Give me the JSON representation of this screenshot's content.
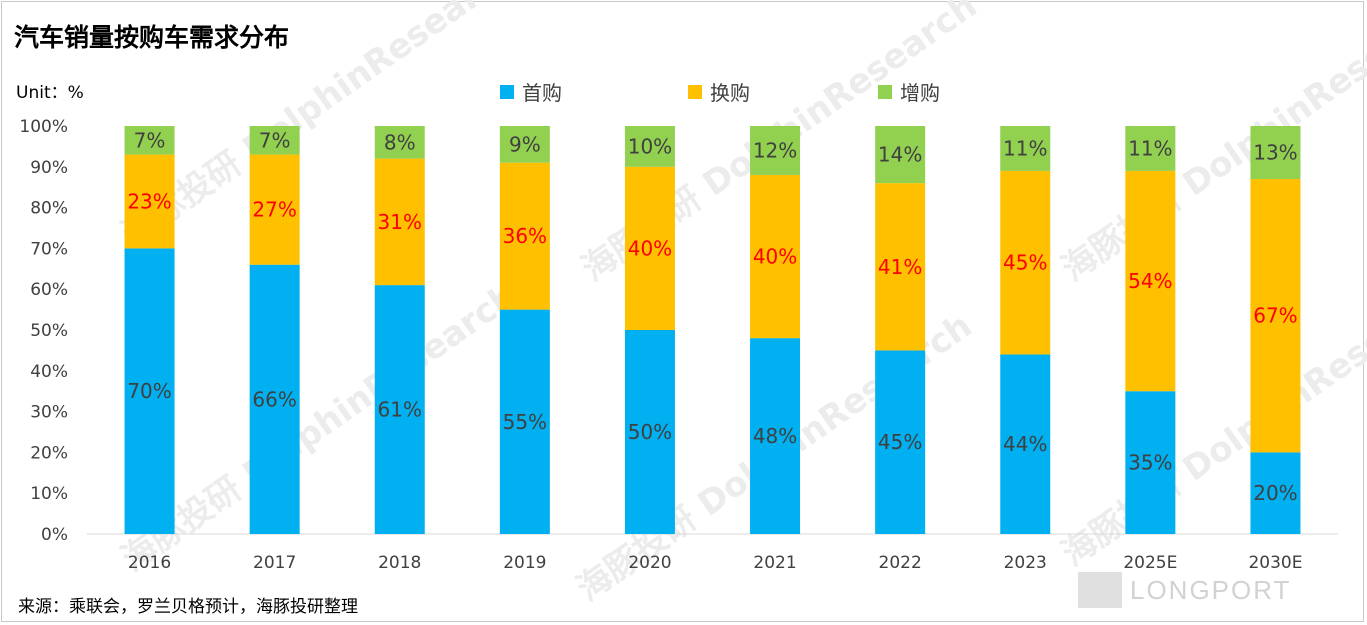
{
  "title": "汽车销量按购车需求分布",
  "unit_label": "Unit：%",
  "source": "来源：乘联会，罗兰贝格预计，海豚投研整理",
  "watermark": {
    "cn": "海豚投研",
    "en": "DolphinResearch",
    "brand": "LONGPORT"
  },
  "colors": {
    "first": "#00b0f0",
    "replace": "#ffc000",
    "add": "#92d050",
    "replace_label": "#ff0000",
    "label": "#404040"
  },
  "legend": [
    {
      "key": "first",
      "label": "首购"
    },
    {
      "key": "replace",
      "label": "换购"
    },
    {
      "key": "add",
      "label": "增购"
    }
  ],
  "chart_data": {
    "type": "bar",
    "stacked": true,
    "categories": [
      "2016",
      "2017",
      "2018",
      "2019",
      "2020",
      "2021",
      "2022",
      "2023",
      "2025E",
      "2030E"
    ],
    "series": [
      {
        "key": "first",
        "name": "首购",
        "values": [
          70,
          66,
          61,
          55,
          50,
          48,
          45,
          44,
          35,
          20
        ]
      },
      {
        "key": "replace",
        "name": "换购",
        "values": [
          23,
          27,
          31,
          36,
          40,
          40,
          41,
          45,
          54,
          67
        ]
      },
      {
        "key": "add",
        "name": "增购",
        "values": [
          7,
          7,
          8,
          9,
          10,
          12,
          14,
          11,
          11,
          13
        ]
      }
    ],
    "ylim": [
      0,
      100
    ],
    "yticks": [
      "0%",
      "10%",
      "20%",
      "30%",
      "40%",
      "50%",
      "60%",
      "70%",
      "80%",
      "90%",
      "100%"
    ],
    "ylabel": "Unit：%",
    "xlabel": "",
    "title": "汽车销量按购车需求分布",
    "legend_position": "top"
  }
}
